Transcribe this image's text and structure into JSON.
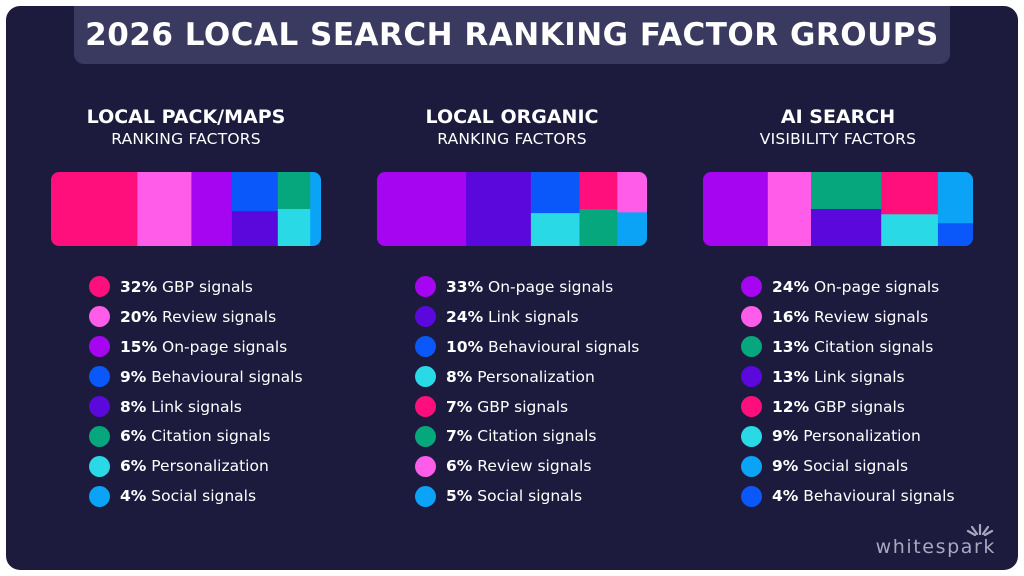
{
  "title": "2026 LOCAL SEARCH RANKING FACTOR GROUPS",
  "brand": "whitespark",
  "colors": {
    "GBP signals": "#ff0f7b",
    "Review signals": "#ff5ce9",
    "On-page signals": "#a605f2",
    "Behavioural signals": "#0b58fa",
    "Link signals": "#5a08dc",
    "Citation signals": "#06a77d",
    "Personalization": "#2ad9e6",
    "Social signals": "#0aa3f5"
  },
  "chart_data": [
    {
      "type": "treemap",
      "title": "LOCAL PACK/MAPS",
      "subtitle": "RANKING FACTORS",
      "series": [
        {
          "name": "GBP signals",
          "value": 32,
          "label": "32%"
        },
        {
          "name": "Review signals",
          "value": 20,
          "label": "20%"
        },
        {
          "name": "On-page signals",
          "value": 15,
          "label": "15%"
        },
        {
          "name": "Behavioural signals",
          "value": 9,
          "label": "9%"
        },
        {
          "name": "Link signals",
          "value": 8,
          "label": "8%"
        },
        {
          "name": "Citation signals",
          "value": 6,
          "label": "6%"
        },
        {
          "name": "Personalization",
          "value": 6,
          "label": "6%"
        },
        {
          "name": "Social signals",
          "value": 4,
          "label": "4%"
        }
      ]
    },
    {
      "type": "treemap",
      "title": "LOCAL ORGANIC",
      "subtitle": "RANKING FACTORS",
      "series": [
        {
          "name": "On-page signals",
          "value": 33,
          "label": "33%"
        },
        {
          "name": "Link signals",
          "value": 24,
          "label": "24%"
        },
        {
          "name": "Behavioural signals",
          "value": 10,
          "label": "10%"
        },
        {
          "name": "Personalization",
          "value": 8,
          "label": "8%"
        },
        {
          "name": "GBP signals",
          "value": 7,
          "label": "7%"
        },
        {
          "name": "Citation signals",
          "value": 7,
          "label": "7%"
        },
        {
          "name": "Review signals",
          "value": 6,
          "label": "6%"
        },
        {
          "name": "Social signals",
          "value": 5,
          "label": "5%"
        }
      ]
    },
    {
      "type": "treemap",
      "title": "AI SEARCH",
      "subtitle": "VISIBILITY FACTORS",
      "series": [
        {
          "name": "On-page signals",
          "value": 24,
          "label": "24%"
        },
        {
          "name": "Review signals",
          "value": 16,
          "label": "16%"
        },
        {
          "name": "Citation signals",
          "value": 13,
          "label": "13%"
        },
        {
          "name": "Link signals",
          "value": 13,
          "label": "13%"
        },
        {
          "name": "GBP signals",
          "value": 12,
          "label": "12%"
        },
        {
          "name": "Personalization",
          "value": 9,
          "label": "9%"
        },
        {
          "name": "Social signals",
          "value": 9,
          "label": "9%"
        },
        {
          "name": "Behavioural signals",
          "value": 4,
          "label": "4%"
        }
      ]
    }
  ]
}
